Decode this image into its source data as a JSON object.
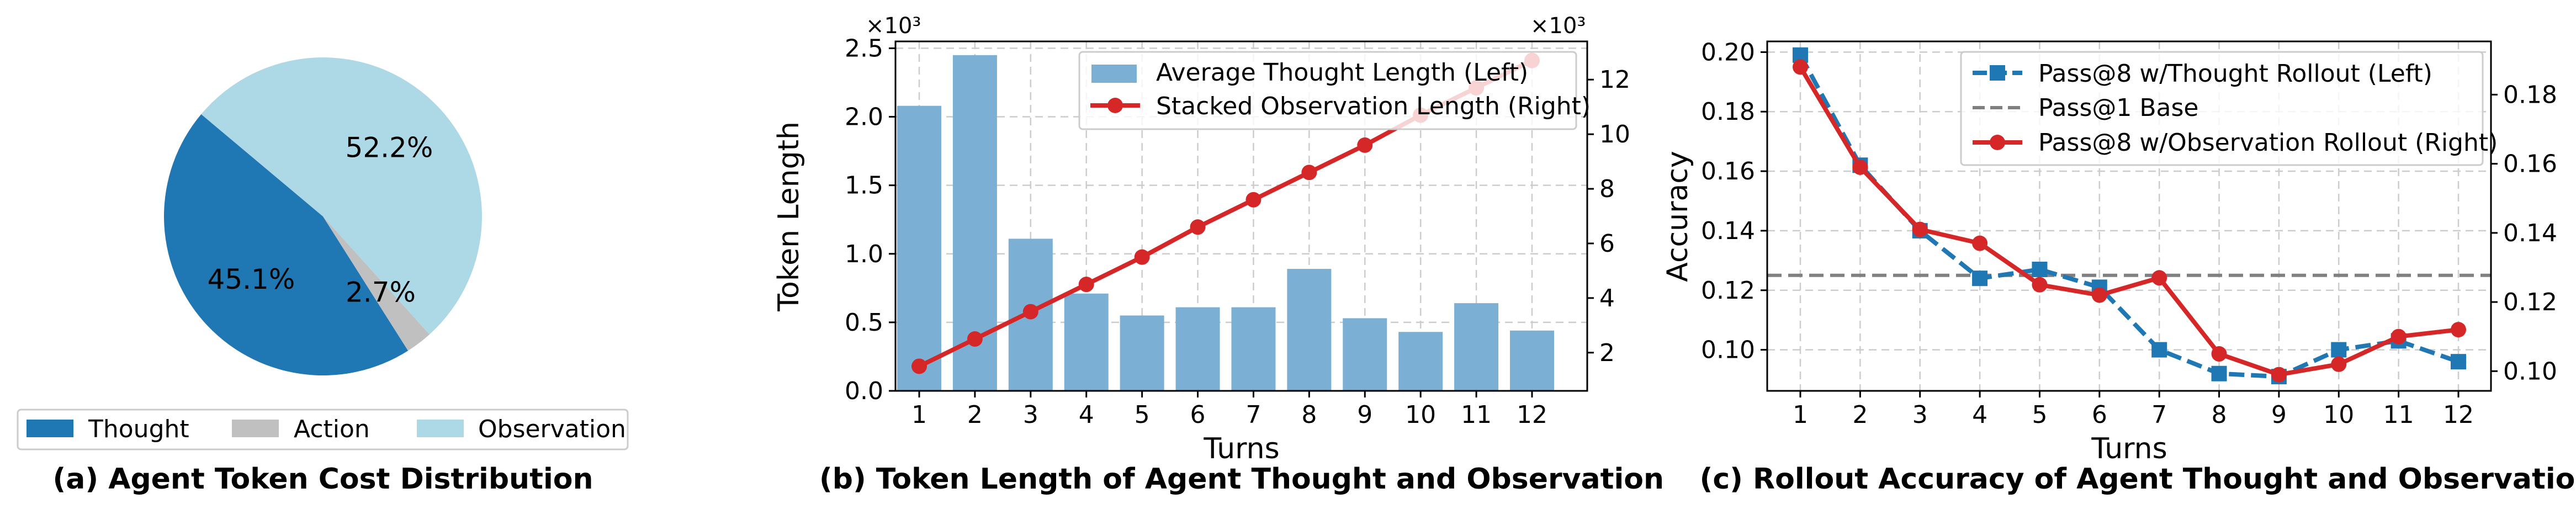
{
  "chart_data": [
    {
      "type": "pie",
      "caption": "(a) Agent Token Cost Distribution",
      "slices": [
        {
          "name": "Thought",
          "value": 45.1,
          "label": "45.1%",
          "color": "#1f77b4"
        },
        {
          "name": "Action",
          "value": 2.7,
          "label": "2.7%",
          "color": "#c0c0c0"
        },
        {
          "name": "Observation",
          "value": 52.2,
          "label": "52.2%",
          "color": "#add8e6"
        }
      ],
      "legend": "bottom"
    },
    {
      "type": "bar",
      "caption": "(b) Token Length of Agent Thought and Observation",
      "categories": [
        "1",
        "2",
        "3",
        "4",
        "5",
        "6",
        "7",
        "8",
        "9",
        "10",
        "11",
        "12"
      ],
      "xlabel": "Turns",
      "ylabel": "Token Length",
      "left_multiplier": "×10³",
      "right_multiplier": "×10³",
      "ylim_left": [
        0,
        2.55
      ],
      "ylim_right": [
        0.6,
        13.4
      ],
      "left_ticks": [
        "0.0",
        "0.5",
        "1.0",
        "1.5",
        "2.0",
        "2.5"
      ],
      "right_ticks": [
        "2",
        "4",
        "6",
        "8",
        "10",
        "12"
      ],
      "series": [
        {
          "name": "Average Thought Length (Left)",
          "kind": "bar",
          "axis": "left",
          "color": "#7bafd4",
          "values": [
            2.08,
            2.45,
            1.11,
            0.71,
            0.55,
            0.61,
            0.61,
            0.89,
            0.53,
            0.43,
            0.64,
            0.44
          ]
        },
        {
          "name": "Stacked Observation Length (Right)",
          "kind": "line",
          "axis": "right",
          "color": "#d62728",
          "values": [
            1.5,
            2.5,
            3.5,
            4.5,
            5.5,
            6.6,
            7.6,
            8.6,
            9.6,
            10.7,
            11.7,
            12.7
          ]
        }
      ],
      "legend": "top-right",
      "grid": true
    },
    {
      "type": "line",
      "caption": "(c) Rollout Accuracy of Agent Thought and Observation",
      "categories": [
        "1",
        "2",
        "3",
        "4",
        "5",
        "6",
        "7",
        "8",
        "9",
        "10",
        "11",
        "12"
      ],
      "xlabel": "Turns",
      "ylabel": "Accuracy",
      "ylim_left": [
        0.0862,
        0.2036
      ],
      "ylim_right": [
        0.0943,
        0.1954
      ],
      "left_ticks": [
        "0.10",
        "0.12",
        "0.14",
        "0.16",
        "0.18",
        "0.20"
      ],
      "right_ticks": [
        "0.10",
        "0.12",
        "0.14",
        "0.16",
        "0.18"
      ],
      "series": [
        {
          "name": "Pass@8 w/Thought Rollout (Left)",
          "kind": "line",
          "axis": "left",
          "color": "#1f77b4",
          "marker": "square",
          "dash": true,
          "values": [
            0.199,
            0.162,
            0.14,
            0.124,
            0.127,
            0.121,
            0.1,
            0.092,
            0.091,
            0.1,
            0.103,
            0.096
          ]
        },
        {
          "name": "Pass@1 Base",
          "kind": "hline",
          "axis": "left",
          "color": "#808080",
          "value": 0.125
        },
        {
          "name": "Pass@8 w/Observation Rollout (Right)",
          "kind": "line",
          "axis": "right",
          "color": "#d62728",
          "marker": "circle",
          "values": [
            0.188,
            0.159,
            0.141,
            0.137,
            0.125,
            0.122,
            0.127,
            0.105,
            0.099,
            0.102,
            0.11,
            0.112
          ]
        }
      ],
      "legend": "top-right",
      "grid": true
    }
  ]
}
